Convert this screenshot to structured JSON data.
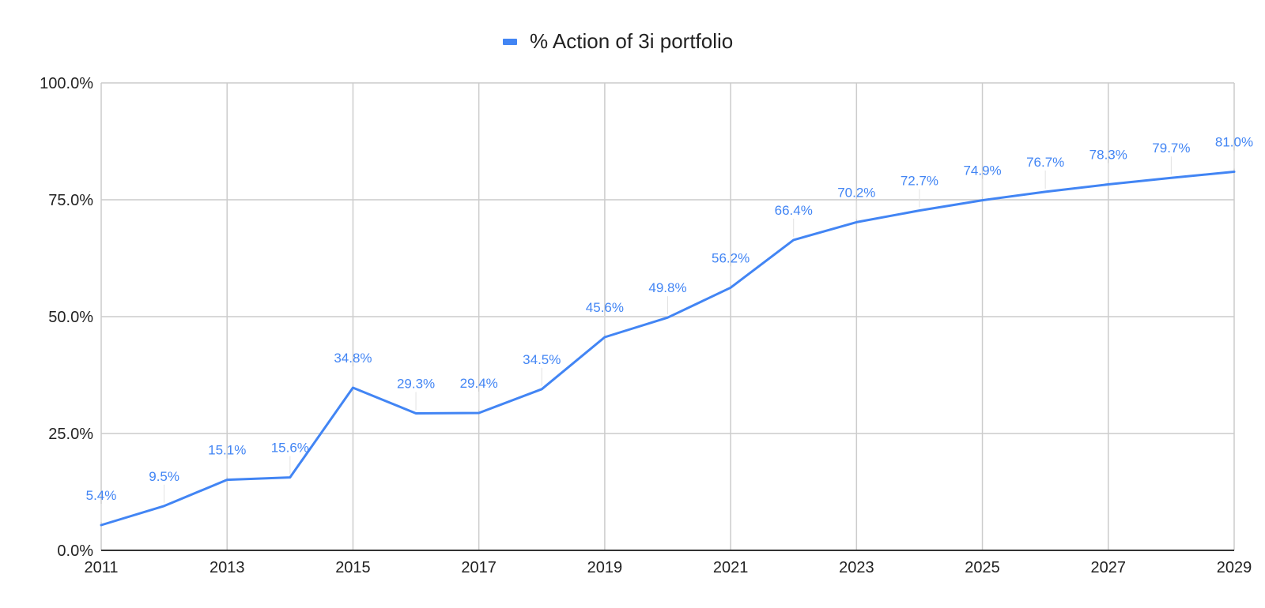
{
  "chart_data": {
    "type": "line",
    "title": "",
    "xlabel": "",
    "ylabel": "",
    "legend_position": "top",
    "grid": true,
    "x": [
      2011,
      2012,
      2013,
      2014,
      2015,
      2016,
      2017,
      2018,
      2019,
      2020,
      2021,
      2022,
      2023,
      2024,
      2025,
      2026,
      2027,
      2028,
      2029
    ],
    "xlim": [
      2011,
      2029
    ],
    "ylim": [
      0,
      100
    ],
    "x_ticks": [
      "2011",
      "2013",
      "2015",
      "2017",
      "2019",
      "2021",
      "2023",
      "2025",
      "2027",
      "2029"
    ],
    "y_ticks": [
      "0.0%",
      "25.0%",
      "50.0%",
      "75.0%",
      "100.0%"
    ],
    "series": [
      {
        "name": "% Action of 3i portfolio",
        "color": "#4285f4",
        "values": [
          5.4,
          9.5,
          15.1,
          15.6,
          34.8,
          29.3,
          29.4,
          34.5,
          45.6,
          49.8,
          56.2,
          66.4,
          70.2,
          72.7,
          74.9,
          76.7,
          78.3,
          79.7,
          81.0
        ],
        "labels": [
          "5.4%",
          "9.5%",
          "15.1%",
          "15.6%",
          "34.8%",
          "29.3%",
          "29.4%",
          "34.5%",
          "45.6%",
          "49.8%",
          "56.2%",
          "66.4%",
          "70.2%",
          "72.7%",
          "74.9%",
          "76.7%",
          "78.3%",
          "79.7%",
          "81.0%"
        ]
      }
    ]
  },
  "colors": {
    "grid": "#cccccc",
    "axis": "#333333",
    "text": "#222222",
    "accent": "#4285f4",
    "label_leader": "#e2e2e2"
  }
}
